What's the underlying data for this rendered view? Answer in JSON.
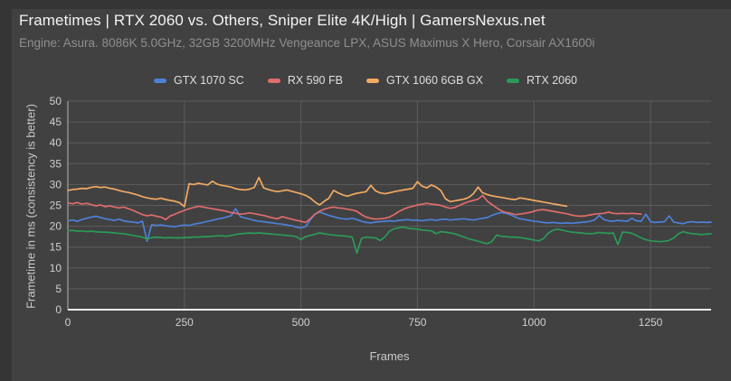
{
  "title": "Frametimes | RTX 2060 vs. Others, Sniper Elite 4K/High | GamersNexus.net",
  "subtitle": "Engine: Asura. 8086K 5.0GHz, 32GB 3200MHz Vengeance LPX, ASUS Maximus X Hero, Corsair AX1600i",
  "colors": {
    "background": "#414141",
    "frame_border": "#353535",
    "gridline": "#5d5d5d",
    "axis_line_left": "#b5b5b5",
    "axis_line_bottom": "#ececec",
    "tick_label": "#cfcfcf",
    "title_text": "#f3f3f3",
    "subtitle_text": "#8f8f8f"
  },
  "chart_data": {
    "type": "line",
    "title": "Frametimes | RTX 2060 vs. Others, Sniper Elite 4K/High | GamersNexus.net",
    "subtitle": "Engine: Asura. 8086K 5.0GHz, 32GB 3200MHz Vengeance LPX, ASUS Maximus X Hero, Corsair AX1600i",
    "xlabel": "Frames",
    "ylabel": "Frametime in ms (consistency is better)",
    "xlim": [
      0,
      1380
    ],
    "ylim": [
      0,
      50
    ],
    "x_ticks": [
      0,
      250,
      500,
      750,
      1000,
      1250
    ],
    "y_ticks": [
      0,
      5,
      10,
      15,
      20,
      25,
      30,
      35,
      40,
      45,
      50
    ],
    "grid": true,
    "legend_position": "top",
    "x_start": 0,
    "x_step": 10,
    "series": [
      {
        "name": "GTX 1070 SC",
        "color": "#4e80d8",
        "values": [
          21.3,
          21.5,
          21.2,
          21.6,
          21.9,
          22.2,
          22.4,
          22.1,
          21.8,
          21.6,
          21.4,
          21.7,
          21.3,
          21.1,
          21.0,
          20.8,
          21.2,
          16.4,
          20.4,
          20.2,
          20.3,
          20.1,
          20.0,
          19.9,
          20.1,
          20.3,
          20.2,
          20.5,
          20.7,
          20.9,
          21.2,
          21.4,
          21.7,
          21.9,
          22.2,
          22.5,
          24.2,
          22.3,
          22.0,
          21.7,
          21.4,
          21.2,
          21.1,
          20.9,
          20.8,
          20.6,
          20.5,
          20.3,
          20.1,
          19.8,
          19.6,
          19.9,
          21.5,
          22.9,
          23.4,
          23.0,
          22.6,
          22.3,
          22.0,
          21.8,
          21.7,
          21.9,
          21.6,
          21.2,
          20.9,
          20.8,
          21.0,
          21.1,
          21.2,
          21.3,
          21.2,
          21.4,
          21.5,
          21.6,
          21.4,
          21.5,
          21.3,
          21.5,
          21.6,
          21.4,
          21.6,
          21.7,
          21.5,
          21.6,
          21.7,
          21.8,
          21.6,
          21.5,
          21.7,
          21.9,
          22.1,
          22.6,
          23.0,
          23.3,
          23.1,
          22.7,
          22.2,
          21.8,
          21.6,
          21.4,
          21.2,
          21.1,
          20.9,
          20.8,
          20.9,
          20.8,
          20.7,
          20.8,
          20.7,
          20.8,
          20.9,
          21.0,
          21.2,
          21.5,
          22.6,
          21.6,
          21.3,
          21.2,
          21.4,
          21.3,
          21.2,
          21.9,
          21.3,
          21.2,
          22.9,
          21.1,
          20.9,
          21.0,
          21.1,
          22.5,
          21.0,
          20.8,
          20.6,
          21.0,
          21.1,
          20.9,
          21.0,
          20.9,
          21.0
        ]
      },
      {
        "name": "RX 590 FB",
        "color": "#e06c6c",
        "values": [
          25.6,
          25.4,
          25.7,
          25.3,
          25.5,
          25.2,
          24.9,
          25.1,
          24.7,
          24.9,
          24.6,
          24.4,
          24.6,
          24.2,
          23.8,
          23.3,
          22.8,
          22.5,
          22.7,
          22.4,
          22.2,
          21.6,
          22.5,
          22.9,
          23.4,
          23.8,
          24.2,
          24.5,
          24.8,
          24.6,
          24.4,
          24.2,
          24.0,
          23.8,
          23.6,
          23.3,
          23.1,
          22.9,
          23.0,
          23.2,
          23.0,
          22.8,
          22.6,
          22.3,
          22.0,
          21.8,
          22.3,
          22.0,
          21.7,
          21.4,
          21.2,
          20.9,
          21.8,
          22.9,
          23.6,
          24.1,
          24.4,
          24.6,
          24.4,
          24.3,
          24.1,
          23.9,
          23.6,
          22.8,
          22.2,
          21.9,
          21.7,
          21.8,
          21.9,
          22.2,
          22.8,
          23.5,
          24.1,
          24.5,
          24.8,
          25.1,
          25.3,
          25.5,
          25.3,
          25.2,
          25.0,
          24.6,
          24.3,
          24.5,
          25.0,
          25.5,
          25.9,
          26.2,
          26.5,
          27.4,
          26.0,
          25.2,
          24.4,
          23.7,
          23.3,
          23.1,
          22.8,
          22.9,
          23.1,
          23.3,
          23.6,
          23.9,
          24.0,
          23.8,
          23.6,
          23.4,
          23.2,
          23.0,
          22.7,
          22.5,
          22.4,
          22.5,
          22.7,
          22.9,
          23.0,
          23.1,
          23.4,
          23.1,
          23.0,
          23.1,
          23.0,
          23.1,
          23.0,
          22.9
        ]
      },
      {
        "name": "GTX 1060 6GB GX",
        "color": "#f2aa63",
        "values": [
          28.6,
          28.8,
          28.9,
          29.1,
          29.0,
          29.3,
          29.5,
          29.3,
          29.4,
          29.1,
          28.9,
          28.6,
          28.3,
          28.1,
          27.8,
          27.5,
          27.1,
          26.8,
          26.6,
          26.5,
          26.7,
          26.4,
          26.2,
          26.0,
          25.6,
          24.7,
          30.2,
          30.0,
          30.3,
          30.1,
          29.9,
          30.8,
          30.1,
          29.8,
          29.6,
          29.4,
          29.0,
          28.8,
          28.7,
          28.9,
          29.3,
          31.7,
          29.2,
          28.8,
          28.5,
          28.3,
          28.5,
          28.7,
          28.4,
          28.1,
          27.8,
          27.4,
          26.8,
          25.8,
          25.1,
          26.0,
          26.7,
          28.6,
          28.0,
          27.5,
          27.2,
          27.6,
          27.9,
          28.1,
          28.3,
          29.8,
          28.5,
          28.0,
          27.8,
          28.0,
          28.3,
          28.5,
          28.7,
          28.9,
          29.1,
          30.7,
          29.6,
          29.2,
          29.9,
          29.4,
          28.6,
          26.6,
          25.9,
          26.1,
          26.3,
          26.5,
          26.9,
          27.8,
          29.4,
          28.0,
          27.6,
          27.3,
          27.1,
          26.9,
          26.7,
          26.5,
          26.4,
          26.8,
          26.6,
          26.4,
          26.2,
          26.0,
          25.8,
          25.6,
          25.4,
          25.2,
          25.0,
          24.8
        ]
      },
      {
        "name": "RTX 2060",
        "color": "#2b9a57",
        "values": [
          18.9,
          19.0,
          18.8,
          18.9,
          18.7,
          18.8,
          18.7,
          18.6,
          18.6,
          18.5,
          18.4,
          18.3,
          18.2,
          18.0,
          17.8,
          17.6,
          17.4,
          16.9,
          17.3,
          17.4,
          17.3,
          17.2,
          17.3,
          17.2,
          17.2,
          17.3,
          17.3,
          17.4,
          17.4,
          17.5,
          17.5,
          17.6,
          17.7,
          17.7,
          17.6,
          17.8,
          18.0,
          18.2,
          18.3,
          18.4,
          18.3,
          18.4,
          18.3,
          18.2,
          18.1,
          18.0,
          17.9,
          17.8,
          17.7,
          17.5,
          16.8,
          17.5,
          17.8,
          18.1,
          18.4,
          18.2,
          18.0,
          17.9,
          17.8,
          17.7,
          17.6,
          17.4,
          13.6,
          17.1,
          17.4,
          17.3,
          17.2,
          16.6,
          17.4,
          18.8,
          19.4,
          19.6,
          19.8,
          19.5,
          19.4,
          19.3,
          19.1,
          19.0,
          18.9,
          18.2,
          18.7,
          18.6,
          18.4,
          18.2,
          17.8,
          17.4,
          17.0,
          16.7,
          16.4,
          16.1,
          15.8,
          16.4,
          17.9,
          17.6,
          17.5,
          17.4,
          17.4,
          17.3,
          17.1,
          16.9,
          16.7,
          16.5,
          17.0,
          18.3,
          19.0,
          19.3,
          19.1,
          18.8,
          18.6,
          18.5,
          18.4,
          18.3,
          18.2,
          18.3,
          18.5,
          18.4,
          18.3,
          18.4,
          15.6,
          18.6,
          18.5,
          18.3,
          17.8,
          17.2,
          16.8,
          16.5,
          16.4,
          16.3,
          16.4,
          16.6,
          17.2,
          18.2,
          18.7,
          18.4,
          18.2,
          18.1,
          18.0,
          18.1,
          18.2
        ]
      }
    ]
  }
}
